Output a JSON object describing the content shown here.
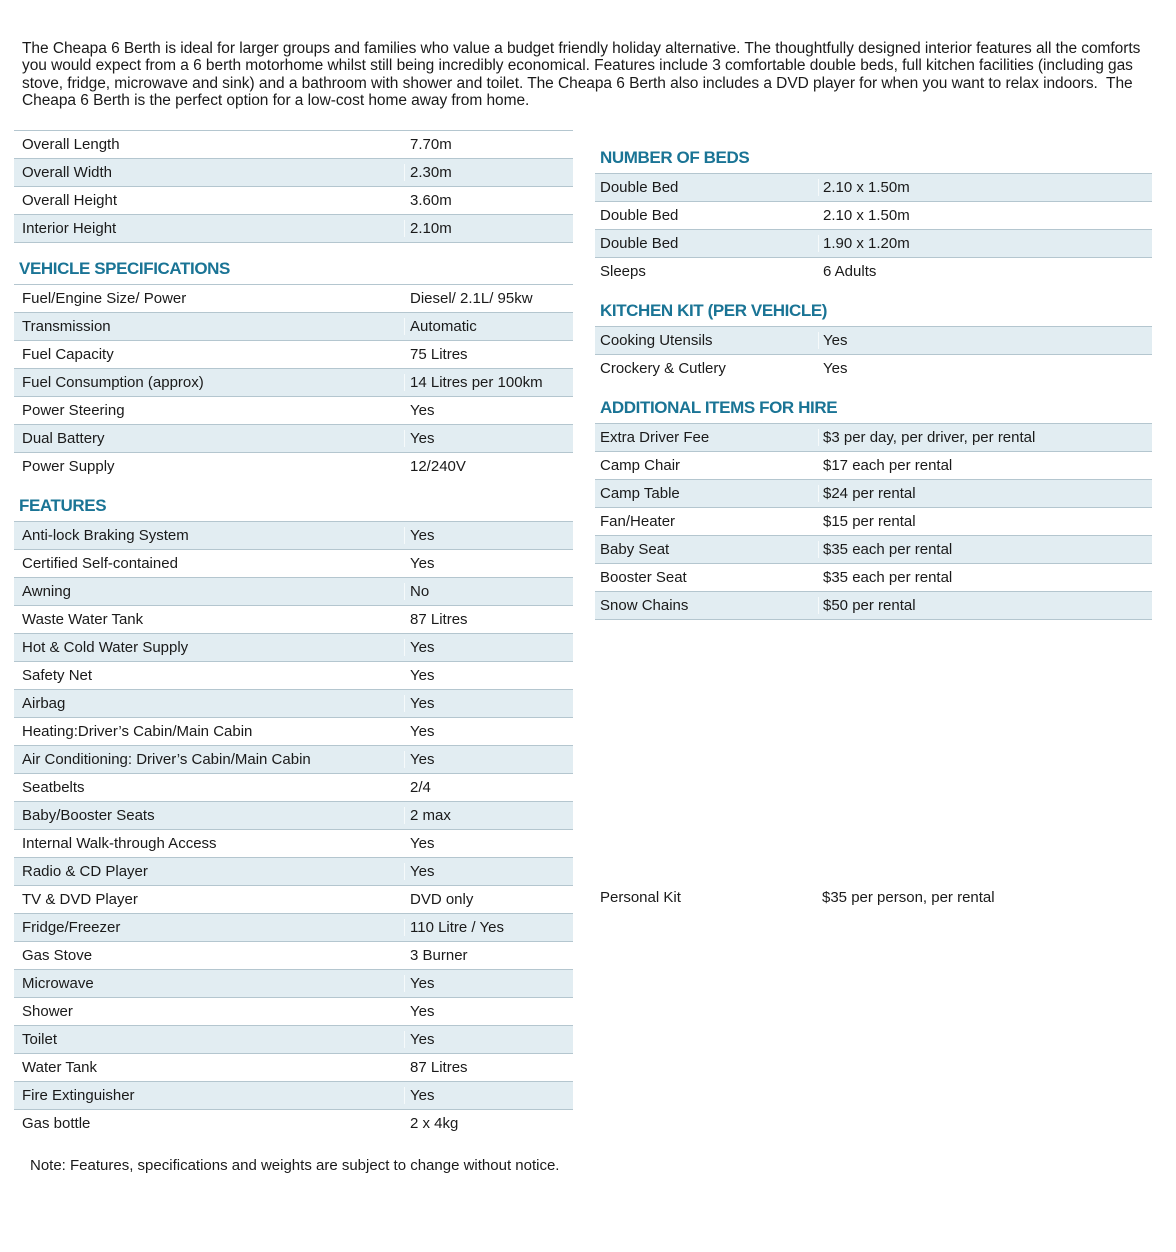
{
  "intro": "The Cheapa 6 Berth is ideal for larger groups and families who value a budget friendly holiday alternative. The thoughtfully designed interior features all the comforts you would expect from a 6 berth motorhome whilst still being incredibly economical. Features include 3 comfortable double beds, full kitchen facilities (including gas stove, fridge, microwave and sink) and a bathroom with shower and toilet. The Cheapa 6 Berth also includes a DVD player for when you want to relax indoors.  The Cheapa 6 Berth is the perfect option for a low-cost home away from home.",
  "colors": {
    "heading_teal": "#1a7495",
    "row_stripe": "#e2edf2",
    "row_line": "#b4c6cf",
    "body_text": "#1a1a1a"
  },
  "dimensions_table": {
    "stripe_first_row": false,
    "bottom_border": true,
    "rows": [
      [
        "Overall Length",
        "7.70m"
      ],
      [
        "Overall Width",
        "2.30m"
      ],
      [
        "Overall Height",
        "3.60m"
      ],
      [
        "Interior Height",
        "2.10m"
      ]
    ]
  },
  "vehicle_specifications": {
    "title": "VEHICLE SPECIFICATIONS",
    "stripe_first_row": false,
    "bottom_border": false,
    "rows": [
      [
        "Fuel/Engine Size/ Power",
        "Diesel/ 2.1L/ 95kw"
      ],
      [
        "Transmission",
        "Automatic"
      ],
      [
        "Fuel Capacity",
        "75 Litres"
      ],
      [
        "Fuel Consumption (approx)",
        "14 Litres per 100km"
      ],
      [
        "Power Steering",
        "Yes"
      ],
      [
        "Dual Battery",
        "Yes"
      ],
      [
        "Power Supply",
        "12/240V"
      ]
    ]
  },
  "features": {
    "title": "FEATURES",
    "stripe_first_row": true,
    "bottom_border": false,
    "rows": [
      [
        "Anti-lock Braking System",
        "Yes"
      ],
      [
        "Certified Self-contained",
        "Yes"
      ],
      [
        "Awning",
        "No"
      ],
      [
        "Waste Water Tank",
        "87 Litres"
      ],
      [
        "Hot & Cold Water Supply",
        "Yes"
      ],
      [
        "Safety Net",
        "Yes"
      ],
      [
        "Airbag",
        "Yes"
      ],
      [
        "Heating:Driver’s Cabin/Main Cabin",
        "Yes"
      ],
      [
        "Air Conditioning: Driver’s Cabin/Main Cabin",
        "Yes"
      ],
      [
        "Seatbelts",
        "2/4"
      ],
      [
        "Baby/Booster Seats",
        "2 max"
      ],
      [
        "Internal Walk-through Access",
        "Yes"
      ],
      [
        "Radio & CD Player",
        "Yes"
      ],
      [
        "TV & DVD Player",
        "DVD only"
      ],
      [
        "Fridge/Freezer",
        "110 Litre / Yes"
      ],
      [
        "Gas Stove",
        "3 Burner"
      ],
      [
        "Microwave",
        "Yes"
      ],
      [
        "Shower",
        "Yes"
      ],
      [
        "Toilet",
        "Yes"
      ],
      [
        "Water Tank",
        "87 Litres"
      ],
      [
        "Fire Extinguisher",
        "Yes"
      ],
      [
        "Gas bottle",
        "2 x 4kg"
      ]
    ]
  },
  "number_of_beds": {
    "title": "NUMBER OF BEDS",
    "stripe_first_row": true,
    "bottom_border": false,
    "rows": [
      [
        "Double Bed",
        "2.10 x 1.50m"
      ],
      [
        "Double Bed",
        "2.10 x 1.50m"
      ],
      [
        "Double Bed",
        "1.90 x 1.20m"
      ],
      [
        "Sleeps",
        "6 Adults"
      ]
    ]
  },
  "kitchen_kit": {
    "title": "KITCHEN KIT (PER VEHICLE)",
    "stripe_first_row": true,
    "bottom_border": false,
    "rows": [
      [
        "Cooking Utensils",
        "Yes"
      ],
      [
        "Crockery & Cutlery",
        "Yes"
      ]
    ]
  },
  "additional_items": {
    "title": "ADDITIONAL ITEMS FOR HIRE",
    "stripe_first_row": true,
    "bottom_border": true,
    "rows": [
      [
        "Extra Driver Fee",
        "$3 per day, per driver, per rental"
      ],
      [
        "Camp Chair",
        "$17 each per rental"
      ],
      [
        "Camp Table",
        "$24 per rental"
      ],
      [
        "Fan/Heater",
        "$15 per rental"
      ],
      [
        "Baby Seat",
        "$35 each per rental"
      ],
      [
        "Booster Seat",
        "$35 each per rental"
      ],
      [
        "Snow Chains",
        "$50 per rental"
      ]
    ]
  },
  "personal_kit": {
    "label": "Personal Kit",
    "value": "$35 per person, per rental"
  },
  "note": "Note: Features, specifications and weights are subject to change without notice."
}
